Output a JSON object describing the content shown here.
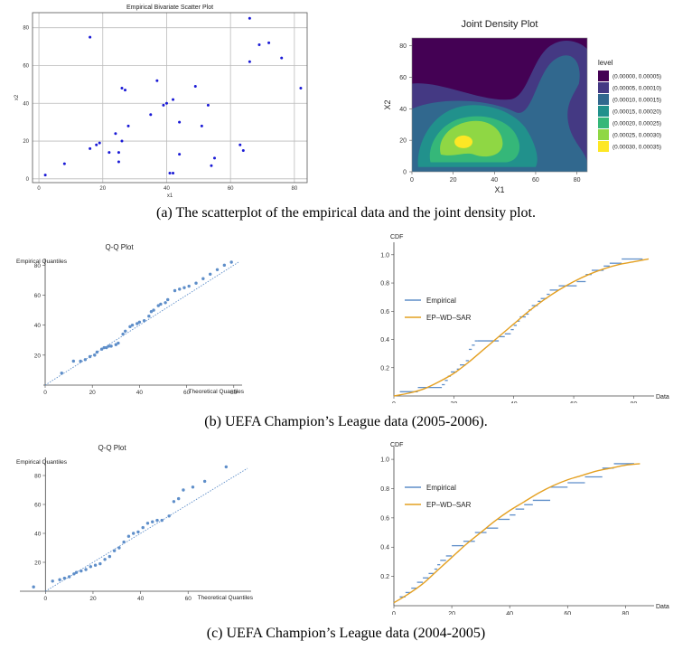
{
  "captions": {
    "a": "(a) The scatterplot of the empirical data and the joint density plot.",
    "b": "(b) UEFA Champion’s League data (2005-2006).",
    "c": "(c) UEFA Champion’s League data (2004-2005)"
  },
  "colors": {
    "scatter_point": "#1a1ad6",
    "qq_point": "#5e8ec9",
    "qq_line": "#5e8ec9",
    "empirical": "#5e8ec9",
    "model": "#e4a021",
    "grid": "#bbbbbb"
  },
  "chart_data": [
    {
      "id": "scatter",
      "type": "scatter",
      "title": "Empirical Bivariate Scatter Plot",
      "xlabel": "x1",
      "ylabel": "x2",
      "xlim": [
        -2,
        84
      ],
      "ylim": [
        -2,
        88
      ],
      "xticks": [
        0,
        20,
        40,
        60,
        80
      ],
      "yticks": [
        0,
        20,
        40,
        60,
        80
      ],
      "grid": true,
      "points": [
        [
          2,
          2
        ],
        [
          8,
          8
        ],
        [
          16,
          75
        ],
        [
          16,
          16
        ],
        [
          18,
          18
        ],
        [
          19,
          19
        ],
        [
          22,
          14
        ],
        [
          24,
          24
        ],
        [
          25,
          9
        ],
        [
          25,
          14
        ],
        [
          26,
          20
        ],
        [
          26,
          48
        ],
        [
          27,
          47
        ],
        [
          28,
          28
        ],
        [
          35,
          34
        ],
        [
          37,
          52
        ],
        [
          39,
          39
        ],
        [
          40,
          40
        ],
        [
          41,
          3
        ],
        [
          42,
          3
        ],
        [
          42,
          42
        ],
        [
          44,
          30
        ],
        [
          44,
          13
        ],
        [
          49,
          49
        ],
        [
          51,
          28
        ],
        [
          53,
          39
        ],
        [
          54,
          7
        ],
        [
          55,
          11
        ],
        [
          63,
          18
        ],
        [
          64,
          15
        ],
        [
          66,
          85
        ],
        [
          66,
          62
        ],
        [
          69,
          71
        ],
        [
          72,
          72
        ],
        [
          76,
          64
        ],
        [
          82,
          48
        ]
      ]
    },
    {
      "id": "density",
      "type": "heatmap",
      "title": "Joint Density Plot",
      "xlabel": "X1",
      "ylabel": "X2",
      "xlim": [
        0,
        85
      ],
      "ylim": [
        0,
        85
      ],
      "xticks": [
        0,
        20,
        40,
        60,
        80
      ],
      "yticks": [
        0,
        20,
        40,
        60,
        80
      ],
      "legend_title": "level",
      "levels": [
        {
          "label": "(0.00000, 0.00005)",
          "color": "#440154"
        },
        {
          "label": "(0.00005, 0.00010)",
          "color": "#443983"
        },
        {
          "label": "(0.00010, 0.00015)",
          "color": "#31688e"
        },
        {
          "label": "(0.00015, 0.00020)",
          "color": "#21918c"
        },
        {
          "label": "(0.00020, 0.00025)",
          "color": "#35b779"
        },
        {
          "label": "(0.00025, 0.00030)",
          "color": "#8fd744"
        },
        {
          "label": "(0.00030, 0.00035)",
          "color": "#fde725"
        }
      ]
    },
    {
      "id": "qq_b",
      "type": "scatter",
      "title": "Q-Q Plot",
      "xlabel": "Theoretical Quantiles",
      "ylabel": "Empirical Quantiles",
      "xlim": [
        0,
        82
      ],
      "ylim": [
        0,
        82
      ],
      "xticks": [
        0,
        20,
        40,
        60,
        80
      ],
      "yticks": [
        20,
        40,
        60,
        80
      ],
      "points": [
        [
          7,
          8
        ],
        [
          12,
          16
        ],
        [
          15,
          16
        ],
        [
          17,
          17
        ],
        [
          19,
          19
        ],
        [
          21,
          20
        ],
        [
          22,
          22
        ],
        [
          24,
          24
        ],
        [
          25,
          25
        ],
        [
          26,
          25
        ],
        [
          27,
          26
        ],
        [
          28,
          26
        ],
        [
          30,
          27
        ],
        [
          31,
          28
        ],
        [
          33,
          34
        ],
        [
          34,
          36
        ],
        [
          36,
          39
        ],
        [
          37,
          40
        ],
        [
          39,
          41
        ],
        [
          40,
          42
        ],
        [
          42,
          43
        ],
        [
          44,
          46
        ],
        [
          45,
          49
        ],
        [
          46,
          50
        ],
        [
          48,
          53
        ],
        [
          49,
          54
        ],
        [
          51,
          55
        ],
        [
          52,
          57
        ],
        [
          55,
          63
        ],
        [
          57,
          64
        ],
        [
          59,
          65
        ],
        [
          61,
          66
        ],
        [
          64,
          68
        ],
        [
          67,
          71
        ],
        [
          70,
          74
        ],
        [
          73,
          77
        ],
        [
          76,
          80
        ],
        [
          79,
          82
        ]
      ]
    },
    {
      "id": "cdf_b",
      "type": "line",
      "ylabel": "CDF",
      "xlabel": "Data",
      "xlim": [
        0,
        85
      ],
      "ylim": [
        0,
        1.05
      ],
      "xticks": [
        0,
        20,
        40,
        60,
        80
      ],
      "yticks": [
        0.2,
        0.4,
        0.6,
        0.8,
        1.0
      ],
      "legend": [
        "Empirical",
        "EP–WD–SAR"
      ],
      "series": [
        {
          "name": "Empirical",
          "style": "step",
          "x": [
            2,
            8,
            16,
            17,
            18,
            19,
            21,
            22,
            24,
            25,
            26,
            27,
            28,
            35,
            37,
            39,
            40,
            41,
            42,
            44,
            45,
            46,
            48,
            49,
            51,
            52,
            55,
            57,
            61,
            64,
            66,
            70,
            72,
            76
          ],
          "y": [
            0.03,
            0.06,
            0.08,
            0.11,
            0.14,
            0.17,
            0.19,
            0.22,
            0.25,
            0.33,
            0.36,
            0.39,
            0.39,
            0.42,
            0.44,
            0.47,
            0.5,
            0.53,
            0.56,
            0.58,
            0.61,
            0.64,
            0.67,
            0.69,
            0.72,
            0.75,
            0.78,
            0.78,
            0.81,
            0.86,
            0.89,
            0.92,
            0.94,
            0.97
          ]
        },
        {
          "name": "EP-WD-SAR",
          "style": "smooth",
          "x": [
            0,
            5,
            10,
            15,
            20,
            25,
            30,
            35,
            40,
            45,
            50,
            55,
            60,
            65,
            70,
            75,
            80,
            85
          ],
          "y": [
            0.0,
            0.02,
            0.05,
            0.1,
            0.16,
            0.24,
            0.33,
            0.42,
            0.51,
            0.6,
            0.68,
            0.75,
            0.81,
            0.86,
            0.9,
            0.93,
            0.95,
            0.97
          ]
        }
      ]
    },
    {
      "id": "qq_c",
      "type": "scatter",
      "title": "Q-Q Plot",
      "xlabel": "Theoretical Quantiles",
      "ylabel": "Empirical Quantiles",
      "xlim": [
        -10,
        85
      ],
      "ylim": [
        0,
        90
      ],
      "xticks": [
        0,
        20,
        40,
        60
      ],
      "yticks": [
        20,
        40,
        60,
        80
      ],
      "points": [
        [
          -5,
          3
        ],
        [
          3,
          7
        ],
        [
          6,
          8
        ],
        [
          8,
          9
        ],
        [
          10,
          10
        ],
        [
          12,
          12
        ],
        [
          13,
          13
        ],
        [
          15,
          14
        ],
        [
          17,
          15
        ],
        [
          19,
          17
        ],
        [
          21,
          18
        ],
        [
          23,
          19
        ],
        [
          25,
          22
        ],
        [
          27,
          24
        ],
        [
          29,
          28
        ],
        [
          31,
          30
        ],
        [
          33,
          34
        ],
        [
          35,
          38
        ],
        [
          37,
          40
        ],
        [
          39,
          41
        ],
        [
          41,
          44
        ],
        [
          43,
          47
        ],
        [
          45,
          48
        ],
        [
          47,
          49
        ],
        [
          49,
          49
        ],
        [
          52,
          52
        ],
        [
          54,
          62
        ],
        [
          56,
          64
        ],
        [
          58,
          70
        ],
        [
          62,
          72
        ],
        [
          67,
          76
        ],
        [
          76,
          86
        ]
      ]
    },
    {
      "id": "cdf_c",
      "type": "line",
      "ylabel": "CDF",
      "xlabel": "Data",
      "xlim": [
        0,
        88
      ],
      "ylim": [
        0,
        1.05
      ],
      "xticks": [
        0,
        20,
        40,
        60,
        80
      ],
      "yticks": [
        0.2,
        0.4,
        0.6,
        0.8,
        1.0
      ],
      "legend": [
        "Empirical",
        "EP–WD–SAR"
      ],
      "series": [
        {
          "name": "Empirical",
          "style": "step",
          "x": [
            2,
            4,
            6,
            8,
            10,
            12,
            14,
            15,
            16,
            18,
            20,
            24,
            28,
            32,
            36,
            40,
            42,
            45,
            48,
            54,
            60,
            66,
            72,
            76
          ],
          "y": [
            0.06,
            0.09,
            0.12,
            0.16,
            0.19,
            0.22,
            0.25,
            0.28,
            0.31,
            0.34,
            0.41,
            0.44,
            0.5,
            0.53,
            0.59,
            0.62,
            0.66,
            0.69,
            0.72,
            0.81,
            0.84,
            0.88,
            0.94,
            0.97
          ]
        },
        {
          "name": "EP-WD-SAR",
          "style": "smooth",
          "x": [
            0,
            5,
            10,
            15,
            20,
            25,
            30,
            35,
            40,
            45,
            50,
            55,
            60,
            65,
            70,
            75,
            80,
            85
          ],
          "y": [
            0.02,
            0.08,
            0.15,
            0.24,
            0.33,
            0.42,
            0.5,
            0.58,
            0.65,
            0.71,
            0.77,
            0.82,
            0.86,
            0.89,
            0.92,
            0.94,
            0.96,
            0.97
          ]
        }
      ]
    }
  ]
}
